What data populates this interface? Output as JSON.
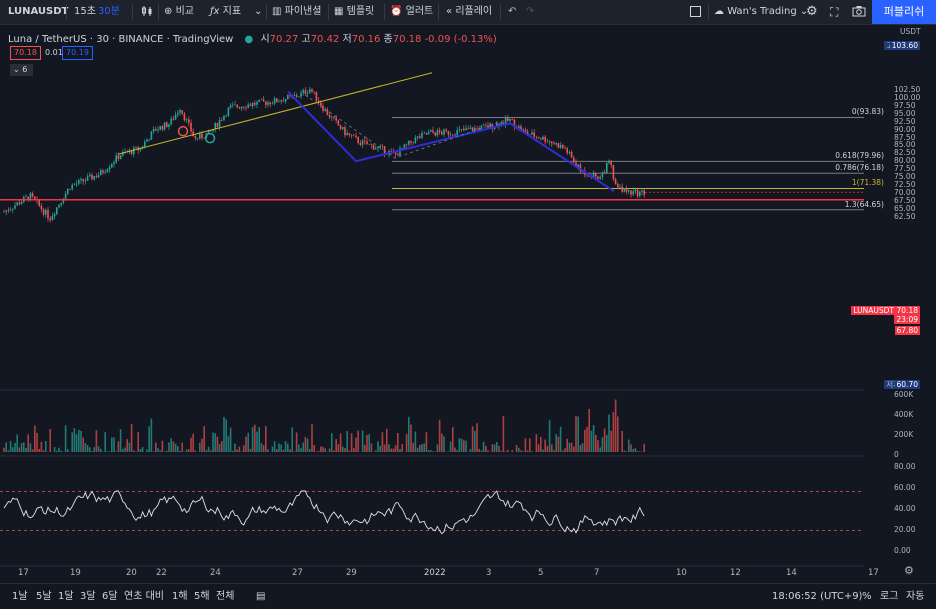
{
  "toolbar": {
    "symbol": "LUNAUSDT",
    "interval_15": "15초",
    "interval_30": "30분",
    "compare": "비교",
    "indicators": "지표",
    "financials": "파이낸셜",
    "templates": "템플릿",
    "alert": "얼러트",
    "replay": "리플레이",
    "layout_name": "Wan's Trading",
    "publish": "퍼블리쉬"
  },
  "legend": {
    "pair": "Luna / TetherUS · 30 · BINANCE · TradingView",
    "open_label": "시",
    "open": "70.27",
    "high_label": "고",
    "high": "70.42",
    "low_label": "저",
    "low": "70.16",
    "close_label": "종",
    "close": "70.18",
    "change": "-0.09 (-0.13%)",
    "sell": "70.18",
    "spread": "0.01",
    "buy": "70.19",
    "indicator_count": "6"
  },
  "price_axis": {
    "currency": "USDT",
    "high_tag_label": "고가",
    "high_tag": "103.60",
    "low_tag_label": "저가",
    "low_tag": "60.70",
    "ticks": [
      "102.50",
      "100.00",
      "97.50",
      "95.00",
      "92.50",
      "90.00",
      "87.50",
      "85.00",
      "82.50",
      "80.00",
      "77.50",
      "75.00",
      "72.50",
      "70.00",
      "67.50",
      "65.00",
      "62.50"
    ],
    "symbol_tag": "LUNAUSDT",
    "last_price": "70.18",
    "countdown": "23:09",
    "line_price": "67.80",
    "volume_ticks": [
      "600K",
      "400K",
      "200K",
      "0"
    ],
    "rsi_ticks": [
      "80.00",
      "60.00",
      "40.00",
      "20.00",
      "0.00"
    ]
  },
  "fib_levels": [
    {
      "label": "0(93.83)",
      "price": 93.83
    },
    {
      "label": "0.618(79.96)",
      "price": 79.96
    },
    {
      "label": "0.786(76.18)",
      "price": 76.18
    },
    {
      "label": "1(71.38)",
      "price": 71.38
    },
    {
      "label": "1.3(64.65)",
      "price": 64.65
    }
  ],
  "time_axis": [
    "17",
    "19",
    "20",
    "22",
    "24",
    "27",
    "29",
    "2022",
    "3",
    "5",
    "7",
    "10",
    "12",
    "14",
    "17"
  ],
  "bottom": {
    "ranges": [
      "1날",
      "5날",
      "1달",
      "3달",
      "6달",
      "연초 대비",
      "1해",
      "5해",
      "전체"
    ],
    "clock": "18:06:52 (UTC+9)",
    "percent": "%",
    "log": "로그",
    "auto": "자동"
  },
  "colors": {
    "bg": "#131722",
    "up": "#26a69a",
    "down": "#ef5350",
    "accent": "#2962ff",
    "price_line": "#f23645",
    "trend": "#c8b62a"
  }
}
